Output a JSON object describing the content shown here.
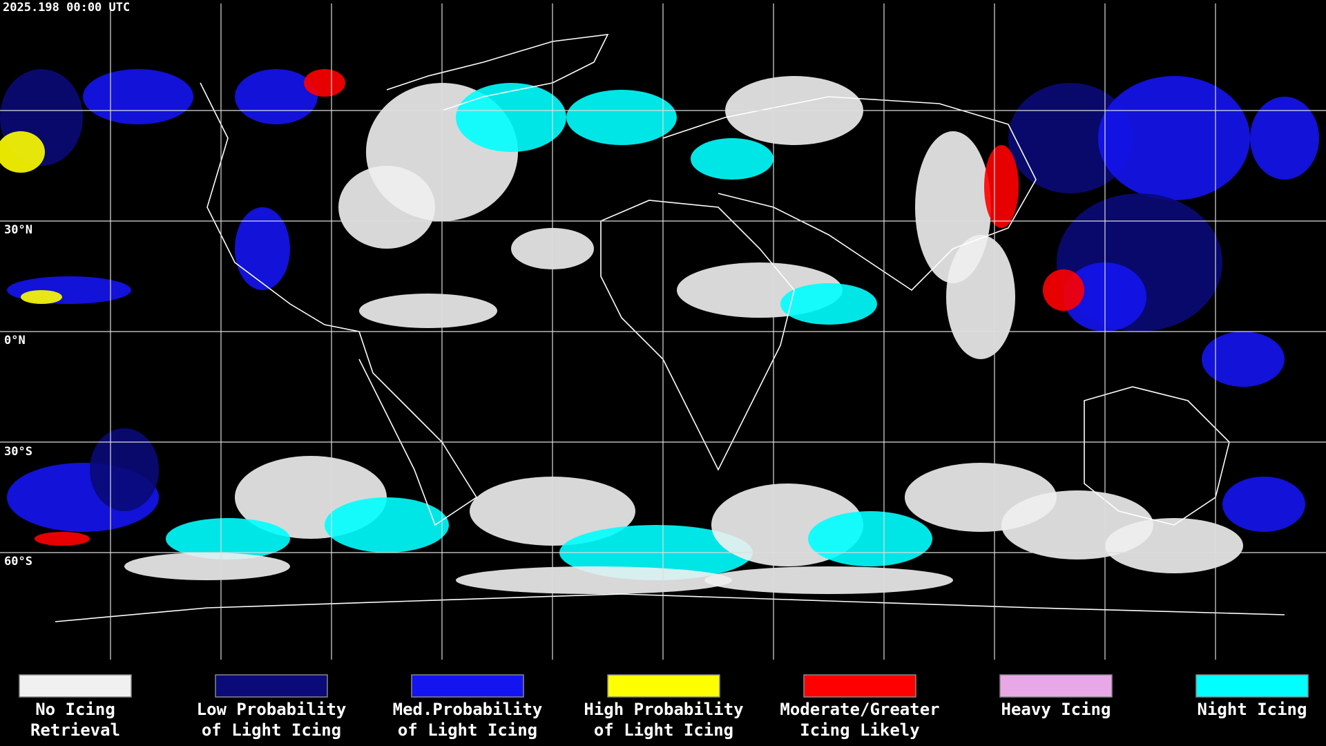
{
  "header": {
    "timestamp": "2025.198 00:00 UTC"
  },
  "latitude_labels": [
    "30°N",
    "0°N",
    "30°S",
    "60°S"
  ],
  "legend": [
    {
      "lines": [
        "No Icing",
        "Retrieval"
      ],
      "color": "#f0f0f0"
    },
    {
      "lines": [
        "Low Probability",
        "of Light Icing"
      ],
      "color": "#0a0a78"
    },
    {
      "lines": [
        "Med.Probability",
        "of Light Icing"
      ],
      "color": "#1414f0"
    },
    {
      "lines": [
        "High Probability",
        "of Light Icing"
      ],
      "color": "#ffff00"
    },
    {
      "lines": [
        "Moderate/Greater",
        "Icing Likely"
      ],
      "color": "#ff0000"
    },
    {
      "lines": [
        "Heavy Icing"
      ],
      "color": "#e8a8e8"
    },
    {
      "lines": [
        "Night Icing"
      ],
      "color": "#00ffff"
    }
  ]
}
